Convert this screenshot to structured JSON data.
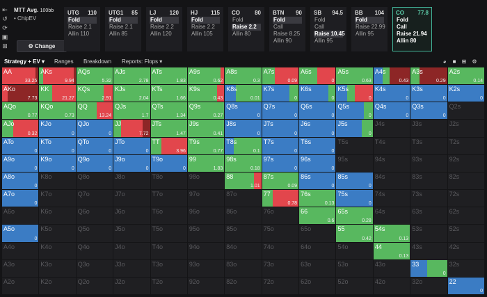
{
  "colors": {
    "fold": "#3b7cc4",
    "call": "#58b85f",
    "raise": "#e2464c",
    "allin": "#8d2626",
    "empty": "#1f1f22",
    "active_border": "#43b59a"
  },
  "sidebar": {
    "icons": [
      "back-arrow-icon",
      "undo-icon",
      "refresh-icon",
      "save-icon",
      "game-icon"
    ],
    "glyphs": [
      "⇤",
      "↺",
      "⟳",
      "▣",
      "⊞"
    ]
  },
  "info": {
    "title": "MTT Avg.",
    "stack": "100bb",
    "model_bullet": "•",
    "model": "ChipEV",
    "change_icon": "⚙",
    "change_label": "Change"
  },
  "positions": [
    {
      "name": "UTG",
      "stack": "110",
      "actions": [
        "Fold",
        "Raise 2.1",
        "Allin 110"
      ],
      "selected": 0
    },
    {
      "name": "UTG1",
      "stack": "85",
      "actions": [
        "Fold",
        "Raise 2.1",
        "Allin 85"
      ],
      "selected": 0
    },
    {
      "name": "LJ",
      "stack": "120",
      "actions": [
        "Fold",
        "Raise 2.2",
        "Allin 120"
      ],
      "selected": 0
    },
    {
      "name": "HJ",
      "stack": "115",
      "actions": [
        "Fold",
        "Raise 2.2",
        "Allin 105"
      ],
      "selected": 0
    },
    {
      "name": "CO",
      "stack": "80",
      "actions": [
        "Fold",
        "Raise 2.2",
        "Allin 80"
      ],
      "selected": 1
    },
    {
      "name": "BTN",
      "stack": "90",
      "actions": [
        "Fold",
        "Call",
        "Raise 8.25",
        "Allin 90"
      ],
      "selected": 0
    },
    {
      "name": "SB",
      "stack": "94.5",
      "actions": [
        "Fold",
        "Call",
        "Raise 10.45",
        "Allin 95"
      ],
      "selected": 2
    },
    {
      "name": "BB",
      "stack": "104",
      "actions": [
        "Fold",
        "Raise 22.99",
        "Allin 95"
      ],
      "selected": 0
    },
    {
      "name": "CO",
      "stack": "77.8",
      "actions": [
        "Fold",
        "Call",
        "Raise 21.94",
        "Allin 80"
      ],
      "selected": -1,
      "active": true
    }
  ],
  "tabs": {
    "strategy": "Strategy + EV",
    "strategy_arrow": "▾",
    "ranges": "Ranges",
    "breakdown": "Breakdown",
    "reports": "Reports: Flops",
    "reports_arrow": "▾",
    "tool_icons": [
      "color-wheel-icon",
      "square-icon",
      "grid-view-icon",
      "settings-icon"
    ],
    "tool_glyphs": [
      "◕",
      "■",
      "⊞",
      "⚙"
    ]
  },
  "hands": [
    [
      "AA",
      "AKs",
      "AQs",
      "AJs",
      "ATs",
      "A9s",
      "A8s",
      "A7s",
      "A6s",
      "A5s",
      "A4s",
      "A3s",
      "A2s"
    ],
    [
      "AKo",
      "KK",
      "KQs",
      "KJs",
      "KTs",
      "K9s",
      "K8s",
      "K7s",
      "K6s",
      "K5s",
      "K4s",
      "K3s",
      "K2s"
    ],
    [
      "AQo",
      "KQo",
      "QQ",
      "QJs",
      "QTs",
      "Q9s",
      "Q8s",
      "Q7s",
      "Q6s",
      "Q5s",
      "Q4s",
      "Q3s",
      "Q2s"
    ],
    [
      "AJo",
      "KJo",
      "QJo",
      "JJ",
      "JTs",
      "J9s",
      "J8s",
      "J7s",
      "J6s",
      "J5s",
      "J4s",
      "J3s",
      "J2s"
    ],
    [
      "ATo",
      "KTo",
      "QTo",
      "JTo",
      "TT",
      "T9s",
      "T8s",
      "T7s",
      "T6s",
      "T5s",
      "T4s",
      "T3s",
      "T2s"
    ],
    [
      "A9o",
      "K9o",
      "Q9o",
      "J9o",
      "T9o",
      "99",
      "98s",
      "97s",
      "96s",
      "95s",
      "94s",
      "93s",
      "92s"
    ],
    [
      "A8o",
      "K8o",
      "Q8o",
      "J8o",
      "T8o",
      "98o",
      "88",
      "87s",
      "86s",
      "85s",
      "84s",
      "83s",
      "82s"
    ],
    [
      "A7o",
      "K7o",
      "Q7o",
      "J7o",
      "T7o",
      "97o",
      "87o",
      "77",
      "76s",
      "75s",
      "74s",
      "73s",
      "72s"
    ],
    [
      "A6o",
      "K6o",
      "Q6o",
      "J6o",
      "T6o",
      "96o",
      "86o",
      "76o",
      "66",
      "65s",
      "64s",
      "63s",
      "62s"
    ],
    [
      "A5o",
      "K5o",
      "Q5o",
      "J5o",
      "T5o",
      "95o",
      "85o",
      "75o",
      "65o",
      "55",
      "54s",
      "53s",
      "52s"
    ],
    [
      "A4o",
      "K4o",
      "Q4o",
      "J4o",
      "T4o",
      "94o",
      "84o",
      "74o",
      "64o",
      "54o",
      "44",
      "43s",
      "42s"
    ],
    [
      "A3o",
      "K3o",
      "Q3o",
      "J3o",
      "T3o",
      "93o",
      "83o",
      "73o",
      "63o",
      "53o",
      "43o",
      "33",
      "32s"
    ],
    [
      "A2o",
      "K2o",
      "Q2o",
      "J2o",
      "T2o",
      "92o",
      "82o",
      "72o",
      "62o",
      "52o",
      "42o",
      "32o",
      "22"
    ]
  ],
  "ev": [
    [
      "33.25",
      "9.94",
      "5.32",
      "2.78",
      "1.83",
      "0.62",
      "0.3",
      "0.09",
      "0",
      "0.63",
      "0.43",
      "0.29",
      "0.14"
    ],
    [
      "7.73",
      "21.27",
      "2.91",
      "2.04",
      "1.66",
      "0.43",
      "0.01",
      "0",
      "0",
      "0",
      "0",
      "0",
      "0"
    ],
    [
      "0.77",
      "0.73",
      "13.24",
      "1.7",
      "1.34",
      "0.27",
      "0",
      "0",
      "0",
      "0",
      "0",
      "0",
      ""
    ],
    [
      "0.32",
      "0",
      "0",
      "7.72",
      "1.47",
      "0.41",
      "0",
      "0",
      "0",
      "0",
      "",
      "",
      ""
    ],
    [
      "0",
      "0",
      "0",
      "0",
      "3.96",
      "0.77",
      "0.1",
      "0",
      "0",
      "",
      "",
      "",
      ""
    ],
    [
      "0",
      "0",
      "0",
      "0",
      "0",
      "1.83",
      "0.18",
      "0",
      "0",
      "",
      "",
      "",
      ""
    ],
    [
      "0",
      "",
      "",
      "",
      "",
      "",
      "1.01",
      "0.09",
      "0",
      "0",
      "",
      "",
      ""
    ],
    [
      "0",
      "",
      "",
      "",
      "",
      "",
      "",
      "0.78",
      "0.13",
      "0",
      "",
      "",
      ""
    ],
    [
      "",
      "",
      "",
      "",
      "",
      "",
      "",
      "",
      "0.6",
      "0.28",
      "",
      "",
      ""
    ],
    [
      "0",
      "",
      "",
      "",
      "",
      "",
      "",
      "",
      "",
      "0.42",
      "0.13",
      "",
      ""
    ],
    [
      "",
      "",
      "",
      "",
      "",
      "",
      "",
      "",
      "",
      "",
      "0.13",
      "",
      ""
    ],
    [
      "",
      "",
      "",
      "",
      "",
      "",
      "",
      "",
      "",
      "",
      "",
      "0",
      ""
    ],
    [
      "",
      "",
      "",
      "",
      "",
      "",
      "",
      "",
      "",
      "",
      "",
      "",
      "0"
    ]
  ],
  "strategy": [
    [
      [
        0,
        0,
        0.92,
        0.08
      ],
      [
        0,
        0.1,
        0.85,
        0.05
      ],
      [
        0,
        1,
        0,
        0
      ],
      [
        0,
        1,
        0,
        0
      ],
      [
        0,
        1,
        0,
        0
      ],
      [
        0,
        0.9,
        0.1,
        0
      ],
      [
        0,
        1,
        0,
        0
      ],
      [
        0,
        0.35,
        0.65,
        0
      ],
      [
        0,
        0.5,
        0.5,
        0
      ],
      [
        0,
        1,
        0,
        0
      ],
      [
        0.25,
        0.2,
        0,
        0.55
      ],
      [
        0,
        0.25,
        0,
        0.75
      ],
      [
        0,
        1,
        0,
        0
      ]
    ],
    [
      [
        0,
        0,
        0.15,
        0.85
      ],
      [
        0,
        0.35,
        0.65,
        0
      ],
      [
        0,
        0.75,
        0.25,
        0
      ],
      [
        0,
        1,
        0,
        0
      ],
      [
        0,
        1,
        0,
        0
      ],
      [
        0,
        0.8,
        0.2,
        0
      ],
      [
        0.3,
        0.7,
        0,
        0
      ],
      [
        0.75,
        0.25,
        0,
        0
      ],
      [
        0.8,
        0.2,
        0,
        0
      ],
      [
        0.3,
        0.2,
        0.5,
        0
      ],
      [
        1,
        0,
        0,
        0
      ],
      [
        1,
        0,
        0,
        0
      ],
      [
        1,
        0,
        0,
        0
      ]
    ],
    [
      [
        0,
        1,
        0,
        0
      ],
      [
        0,
        1,
        0,
        0
      ],
      [
        0,
        0.55,
        0.45,
        0
      ],
      [
        0,
        1,
        0,
        0
      ],
      [
        0,
        1,
        0,
        0
      ],
      [
        0,
        1,
        0,
        0
      ],
      [
        1,
        0,
        0,
        0
      ],
      [
        1,
        0,
        0,
        0
      ],
      [
        1,
        0,
        0,
        0
      ],
      [
        0.75,
        0.25,
        0,
        0
      ],
      [
        1,
        0,
        0,
        0
      ],
      [
        1,
        0,
        0,
        0
      ],
      null
    ],
    [
      [
        0,
        0.3,
        0.7,
        0
      ],
      [
        1,
        0,
        0,
        0
      ],
      [
        1,
        0,
        0,
        0
      ],
      [
        0,
        0.2,
        0.6,
        0.2
      ],
      [
        0,
        1,
        0,
        0
      ],
      [
        0,
        1,
        0,
        0
      ],
      [
        1,
        0,
        0,
        0
      ],
      [
        1,
        0,
        0,
        0
      ],
      [
        1,
        0,
        0,
        0
      ],
      [
        0.7,
        0.3,
        0,
        0
      ],
      null,
      null,
      null
    ],
    [
      [
        1,
        0,
        0,
        0
      ],
      [
        1,
        0,
        0,
        0
      ],
      [
        1,
        0,
        0,
        0
      ],
      [
        1,
        0,
        0,
        0
      ],
      [
        0,
        0.3,
        0.7,
        0
      ],
      [
        0,
        1,
        0,
        0
      ],
      [
        0.25,
        0.75,
        0,
        0
      ],
      [
        1,
        0,
        0,
        0
      ],
      [
        1,
        0,
        0,
        0
      ],
      null,
      null,
      null,
      null
    ],
    [
      [
        1,
        0,
        0,
        0
      ],
      [
        1,
        0,
        0,
        0
      ],
      [
        1,
        0,
        0,
        0
      ],
      [
        1,
        0,
        0,
        0
      ],
      [
        1,
        0,
        0,
        0
      ],
      [
        0,
        1,
        0,
        0
      ],
      [
        0,
        1,
        0,
        0
      ],
      [
        1,
        0,
        0,
        0
      ],
      [
        1,
        0,
        0,
        0
      ],
      null,
      null,
      null,
      null
    ],
    [
      [
        1,
        0,
        0,
        0
      ],
      null,
      null,
      null,
      null,
      null,
      [
        0,
        0.8,
        0.2,
        0
      ],
      [
        0,
        1,
        0,
        0
      ],
      [
        1,
        0,
        0,
        0
      ],
      [
        1,
        0,
        0,
        0
      ],
      null,
      null,
      null
    ],
    [
      [
        1,
        0,
        0,
        0
      ],
      null,
      null,
      null,
      null,
      null,
      null,
      [
        0,
        0.3,
        0.7,
        0
      ],
      [
        0,
        1,
        0,
        0
      ],
      [
        1,
        0,
        0,
        0
      ],
      null,
      null,
      null
    ],
    [
      null,
      null,
      null,
      null,
      null,
      null,
      null,
      null,
      [
        0,
        1,
        0,
        0
      ],
      [
        0,
        1,
        0,
        0
      ],
      null,
      null,
      null
    ],
    [
      [
        1,
        0,
        0,
        0
      ],
      null,
      null,
      null,
      null,
      null,
      null,
      null,
      null,
      [
        0,
        1,
        0,
        0
      ],
      [
        0,
        1,
        0,
        0
      ],
      null,
      null
    ],
    [
      null,
      null,
      null,
      null,
      null,
      null,
      null,
      null,
      null,
      null,
      [
        0,
        1,
        0,
        0
      ],
      null,
      null
    ],
    [
      null,
      null,
      null,
      null,
      null,
      null,
      null,
      null,
      null,
      null,
      null,
      [
        0.45,
        0.55,
        0,
        0
      ],
      null
    ],
    [
      null,
      null,
      null,
      null,
      null,
      null,
      null,
      null,
      null,
      null,
      null,
      null,
      [
        1,
        0,
        0,
        0
      ]
    ]
  ]
}
